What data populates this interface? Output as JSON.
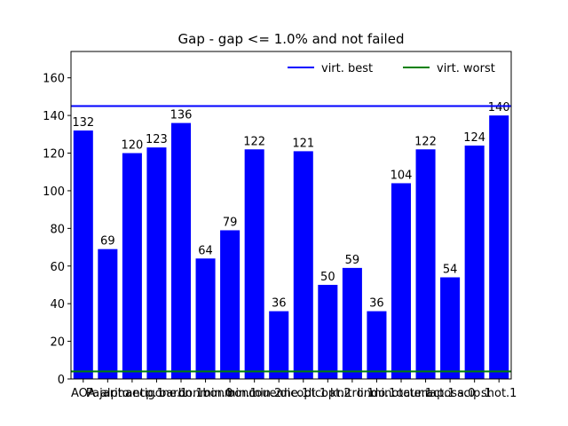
{
  "chart_data": {
    "type": "bar",
    "title": "Gap - gap <= 1.0% and not failed",
    "categories": [
      "AOA",
      "Pajarito",
      "alphaecp.1",
      "antigone.1",
      "baron.1",
      "bonmin.0",
      "bonmin.1",
      "bonmin.2",
      "couenne.1",
      "dicopt.1",
      "dicopt.2",
      "knitro.1",
      "lindo.1",
      "minotaur.1",
      "octeract.1",
      "raposa.0",
      "scip.1",
      "shot.1"
    ],
    "values": [
      132,
      69,
      120,
      123,
      136,
      64,
      79,
      122,
      36,
      121,
      50,
      59,
      36,
      104,
      122,
      54,
      124,
      140
    ],
    "color": "#0000ff",
    "ylim": [
      0,
      174
    ],
    "yticks": [
      0,
      20,
      40,
      60,
      80,
      100,
      120,
      140,
      160
    ],
    "reference_lines": [
      {
        "name": "virt. best",
        "value": 145,
        "color": "#0000ff"
      },
      {
        "name": "virt. worst",
        "value": 4,
        "color": "#008000"
      }
    ],
    "legend": "upper right"
  }
}
